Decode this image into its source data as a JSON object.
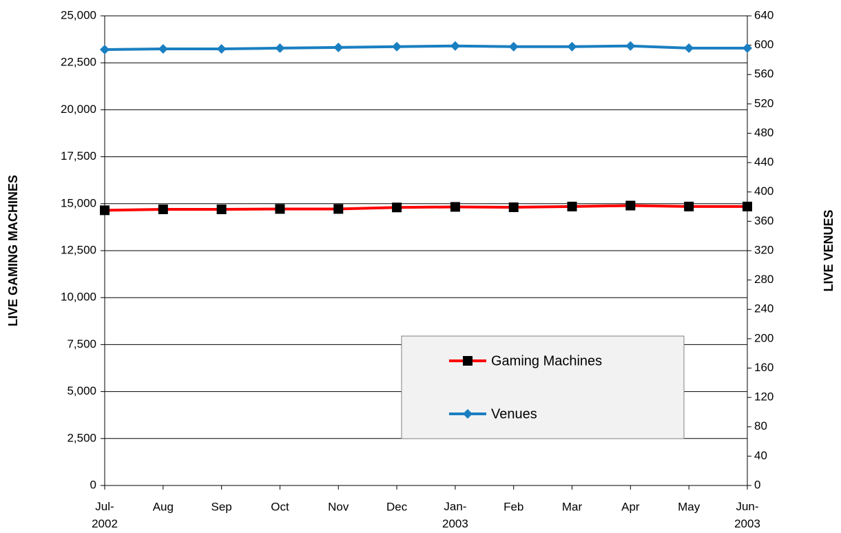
{
  "chart_data": {
    "type": "line",
    "categories": [
      "Jul-2002",
      "Aug",
      "Sep",
      "Oct",
      "Nov",
      "Dec",
      "Jan-2003",
      "Feb",
      "Mar",
      "Apr",
      "May",
      "Jun-2003"
    ],
    "series": [
      {
        "name": "Gaming Machines",
        "color": "#ff0000",
        "marker": "square",
        "marker_color": "#000000",
        "values": [
          14650,
          14700,
          14700,
          14720,
          14720,
          14800,
          14830,
          14810,
          14850,
          14900,
          14850,
          14850
        ]
      },
      {
        "name": "Venues",
        "color": "#1a7fc1",
        "marker": "diamond",
        "marker_color": "#1a7fc1",
        "axis": "y2",
        "values": [
          594,
          595,
          595,
          596,
          597,
          598,
          599,
          598,
          598,
          599,
          596,
          596
        ]
      }
    ],
    "ylabel": "LIVE GAMING MACHINES",
    "y2label": "LIVE VENUES",
    "ylim": [
      0,
      25000
    ],
    "yticks": [
      0,
      {
        "value": 2500,
        "label": "2,500"
      },
      {
        "value": 5000,
        "label": "5,000"
      },
      {
        "value": 7500,
        "label": "7,500"
      },
      {
        "value": 10000,
        "label": "10,000"
      },
      {
        "value": 12500,
        "label": "12,500"
      },
      {
        "value": 15000,
        "label": "15,000"
      },
      {
        "value": 17500,
        "label": "17,500"
      },
      {
        "value": 20000,
        "label": "20,000"
      },
      {
        "value": 22500,
        "label": "22,500"
      },
      {
        "value": 25000,
        "label": "25,000"
      }
    ],
    "y2lim": [
      0,
      640
    ],
    "y2ticks": [
      0,
      40,
      80,
      120,
      160,
      200,
      240,
      280,
      320,
      360,
      400,
      440,
      480,
      520,
      560,
      600,
      640
    ],
    "grid": true,
    "legend": "lower right"
  }
}
